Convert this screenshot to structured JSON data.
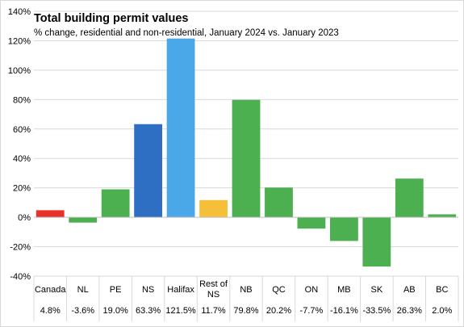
{
  "chart_data": {
    "type": "bar",
    "title": "Total building permit values",
    "subtitle": "% change, residential and non-residential, January 2024 vs. January 2023",
    "categories": [
      [
        "Canada"
      ],
      [
        "NL"
      ],
      [
        "PE"
      ],
      [
        "NS"
      ],
      [
        "Halifax"
      ],
      [
        "Rest of",
        "NS"
      ],
      [
        "NB"
      ],
      [
        "QC"
      ],
      [
        "ON"
      ],
      [
        "MB"
      ],
      [
        "SK"
      ],
      [
        "AB"
      ],
      [
        "BC"
      ]
    ],
    "values": [
      4.8,
      -3.6,
      19.0,
      63.3,
      121.5,
      11.7,
      79.8,
      20.2,
      -7.7,
      -16.1,
      -33.5,
      26.3,
      2.0
    ],
    "value_labels": [
      "4.8%",
      "-3.6%",
      "19.0%",
      "63.3%",
      "121.5%",
      "11.7%",
      "79.8%",
      "20.2%",
      "-7.7%",
      "-16.1%",
      "-33.5%",
      "26.3%",
      "2.0%"
    ],
    "colors": [
      "#e8312a",
      "#4caf50",
      "#4caf50",
      "#2e6fc4",
      "#4aa8e8",
      "#f5bf3a",
      "#4caf50",
      "#4caf50",
      "#4caf50",
      "#4caf50",
      "#4caf50",
      "#4caf50",
      "#4caf50"
    ],
    "yticks": [
      -40,
      -20,
      0,
      20,
      40,
      60,
      80,
      100,
      120,
      140
    ],
    "ytick_labels": [
      "-40%",
      "-20%",
      "0%",
      "20%",
      "40%",
      "60%",
      "80%",
      "100%",
      "120%",
      "140%"
    ],
    "ylim": [
      -40,
      140
    ],
    "grid": true,
    "xlabel": "",
    "ylabel": ""
  }
}
